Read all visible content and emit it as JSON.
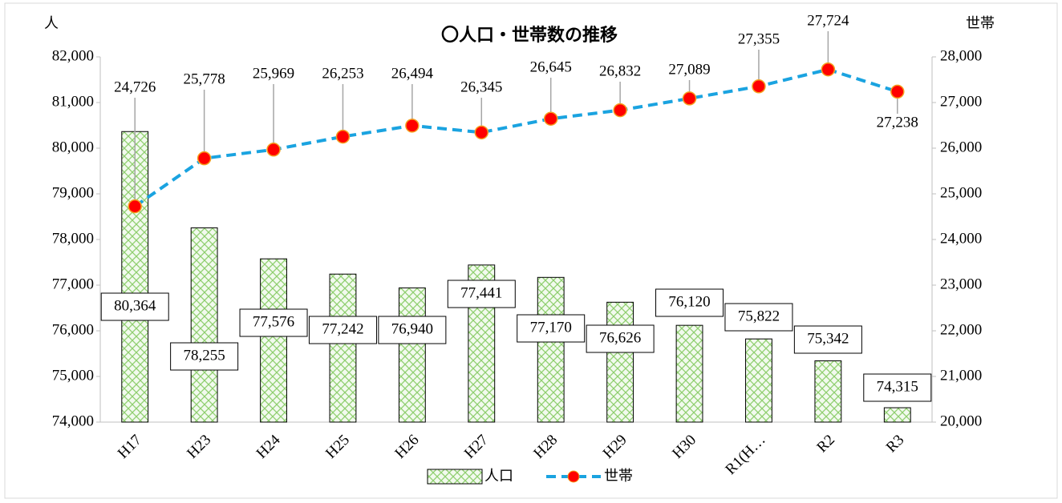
{
  "chart_data": {
    "type": "bar_line",
    "title": "〇人口・世帯数の推移",
    "y_label": "人",
    "y2_label": "世帯",
    "categories": [
      "H17",
      "H23",
      "H24",
      "H25",
      "H26",
      "H27",
      "H28",
      "H29",
      "H30",
      "R1(H…",
      "R2",
      "R3"
    ],
    "series": [
      {
        "name": "人口",
        "type": "bar",
        "color": "#8fcf6f",
        "values": [
          80364,
          78255,
          77576,
          77242,
          76940,
          77441,
          77170,
          76626,
          76120,
          75822,
          75342,
          74315
        ],
        "value_labels": [
          "80,364",
          "78,255",
          "77,576",
          "77,242",
          "76,940",
          "77,441",
          "77,170",
          "76,626",
          "76,120",
          "75,822",
          "75,342",
          "74,315"
        ],
        "label_colors": [
          "#000",
          "#000",
          "#000",
          "#000",
          "#000",
          "#000",
          "#000",
          "#000",
          "#000",
          "#000",
          "#000",
          "#ff0000"
        ]
      },
      {
        "name": "世帯",
        "type": "line",
        "axis": "y2",
        "color": "#1aa3e0",
        "marker_color": "#ff0000",
        "values": [
          24726,
          25778,
          25969,
          26253,
          26494,
          26345,
          26645,
          26832,
          27089,
          27355,
          27724,
          27238
        ],
        "value_labels": [
          "24,726",
          "25,778",
          "25,969",
          "26,253",
          "26,494",
          "26,345",
          "26,645",
          "26,832",
          "27,089",
          "27,355",
          "27,724",
          "27,238"
        ],
        "label_colors": [
          "#000",
          "#000",
          "#000",
          "#000",
          "#000",
          "#000",
          "#000",
          "#000",
          "#000",
          "#000",
          "#000",
          "#ff0000"
        ]
      }
    ],
    "ylim": [
      74000,
      82000
    ],
    "yticks": [
      {
        "value": 74000,
        "label": "74,000"
      },
      {
        "value": 75000,
        "label": "75,000"
      },
      {
        "value": 76000,
        "label": "76,000"
      },
      {
        "value": 77000,
        "label": "77,000"
      },
      {
        "value": 78000,
        "label": "78,000"
      },
      {
        "value": 79000,
        "label": "79,000"
      },
      {
        "value": 80000,
        "label": "80,000"
      },
      {
        "value": 81000,
        "label": "81,000"
      },
      {
        "value": 82000,
        "label": "82,000"
      }
    ],
    "y2lim": [
      20000,
      28000
    ],
    "y2ticks": [
      {
        "value": 20000,
        "label": "20,000"
      },
      {
        "value": 21000,
        "label": "21,000"
      },
      {
        "value": 22000,
        "label": "22,000"
      },
      {
        "value": 23000,
        "label": "23,000"
      },
      {
        "value": 24000,
        "label": "24,000"
      },
      {
        "value": 25000,
        "label": "25,000"
      },
      {
        "value": 26000,
        "label": "26,000"
      },
      {
        "value": 27000,
        "label": "27,000"
      },
      {
        "value": 28000,
        "label": "28,000"
      }
    ],
    "legend": "bottom"
  }
}
